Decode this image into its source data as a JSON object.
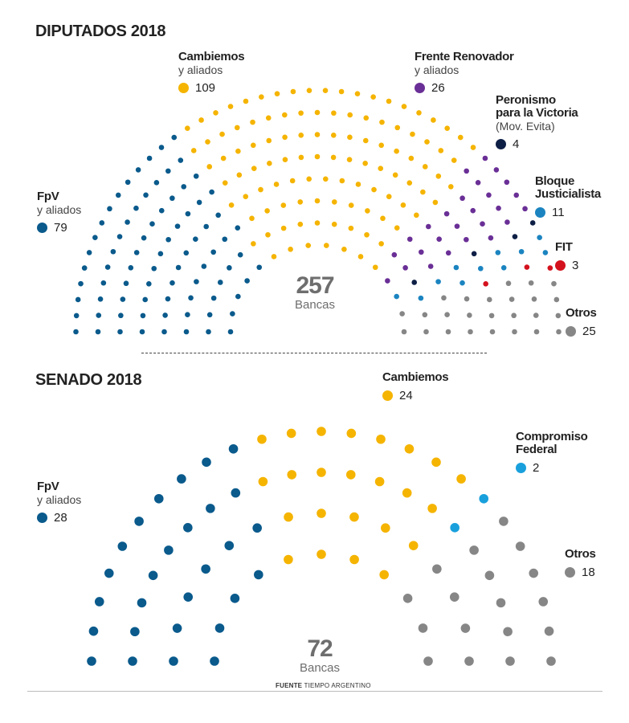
{
  "chart_data": [
    {
      "type": "parliament",
      "title": "DIPUTADOS 2018",
      "total": "257",
      "total_label": "Bancas",
      "parties": [
        {
          "name": "FpV",
          "sub": "y aliados",
          "seats": 79,
          "color": "#0a5a8c"
        },
        {
          "name": "Cambiemos",
          "sub": "y aliados",
          "seats": 109,
          "color": "#f5b400"
        },
        {
          "name": "Frente Renovador",
          "sub": "y aliados",
          "seats": 26,
          "color": "#6a2f96"
        },
        {
          "name": "Peronismo para la Victoria",
          "sub": "(Mov. Evita)",
          "seats": 4,
          "color": "#0e1f45"
        },
        {
          "name": "Bloque Justicialista",
          "sub": "",
          "seats": 11,
          "color": "#1b84c0"
        },
        {
          "name": "FIT",
          "sub": "",
          "seats": 3,
          "color": "#d4121e"
        },
        {
          "name": "Otros",
          "sub": "",
          "seats": 25,
          "color": "#868686"
        }
      ]
    },
    {
      "type": "parliament",
      "title": "SENADO 2018",
      "total": "72",
      "total_label": "Bancas",
      "parties": [
        {
          "name": "FpV",
          "sub": "y aliados",
          "seats": 28,
          "color": "#0a5a8c"
        },
        {
          "name": "Cambiemos",
          "sub": "",
          "seats": 24,
          "color": "#f5b400"
        },
        {
          "name": "Compromiso Federal",
          "sub": "",
          "seats": 2,
          "color": "#19a0dc"
        },
        {
          "name": "Otros",
          "sub": "",
          "seats": 18,
          "color": "#868686"
        }
      ]
    }
  ],
  "labels": {
    "dip_fpv_name": "FpV",
    "dip_fpv_sub": "y aliados",
    "dip_fpv_count": "79",
    "dip_cam_name": "Cambiemos",
    "dip_cam_sub": "y aliados",
    "dip_cam_count": "109",
    "dip_fr_name": "Frente Renovador",
    "dip_fr_sub": "y aliados",
    "dip_fr_count": "26",
    "dip_ppv_name1": "Peronismo",
    "dip_ppv_name2": "para la Victoria",
    "dip_ppv_sub": "(Mov. Evita)",
    "dip_ppv_count": "4",
    "dip_bj_name1": "Bloque",
    "dip_bj_name2": "Justicialista",
    "dip_bj_count": "11",
    "dip_fit_name": "FIT",
    "dip_fit_count": "3",
    "dip_otros_name": "Otros",
    "dip_otros_count": "25",
    "sen_fpv_name": "FpV",
    "sen_fpv_sub": "y aliados",
    "sen_fpv_count": "28",
    "sen_cam_name": "Cambiemos",
    "sen_cam_count": "24",
    "sen_cf_name1": "Compromiso",
    "sen_cf_name2": "Federal",
    "sen_cf_count": "2",
    "sen_otros_name": "Otros",
    "sen_otros_count": "18"
  },
  "source": {
    "label": "FUENTE",
    "text": "TIEMPO ARGENTINO"
  },
  "colors": {
    "fpv": "#0a5a8c",
    "cambiemos": "#f5b400",
    "frente_renovador": "#6a2f96",
    "ppv": "#0e1f45",
    "bloque_justicialista": "#1b84c0",
    "fit": "#d4121e",
    "otros": "#868686",
    "compromiso_federal": "#19a0dc"
  }
}
